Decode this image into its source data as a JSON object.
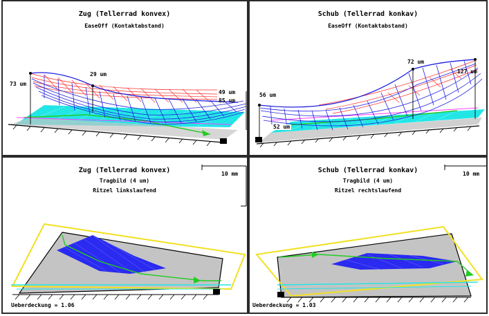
{
  "panels": {
    "top_left": {
      "title": "Zug  (Tellerrad konvex)",
      "subtitle": "EaseOff (Kontaktabstand)",
      "labels": {
        "left": "73 um",
        "mid": "29 um",
        "right_top": "49 um",
        "right_bottom": "85 um"
      }
    },
    "top_right": {
      "title": "Schub  (Tellerrad konkav)",
      "subtitle": "EaseOff (Kontaktabstand)",
      "labels": {
        "left": "56 um",
        "bottom": "52 um",
        "mid": "72 um",
        "right": "127 um"
      }
    },
    "bottom_left": {
      "title": "Zug  (Tellerrad konvex)",
      "line2": "Tragbild  (4 um)",
      "line3": "Ritzel linkslaufend",
      "scale": "10 mm",
      "overlap": "Ueberdeckung = 1.06"
    },
    "bottom_right": {
      "title": "Schub  (Tellerrad konkav)",
      "line2": "Tragbild  (4 um)",
      "line3": "Ritzel rechtslaufend",
      "scale": "10 mm",
      "overlap": "Ueberdeckung = 1.03"
    }
  },
  "colors": {
    "mesh_blue": "#1f1fe0",
    "mesh_red": "#ff2a2a",
    "cyan": "#22e6e6",
    "green": "#22cc22",
    "yellow": "#f2e020",
    "gray": "#c4c4c4",
    "magenta": "#ff40ff"
  }
}
